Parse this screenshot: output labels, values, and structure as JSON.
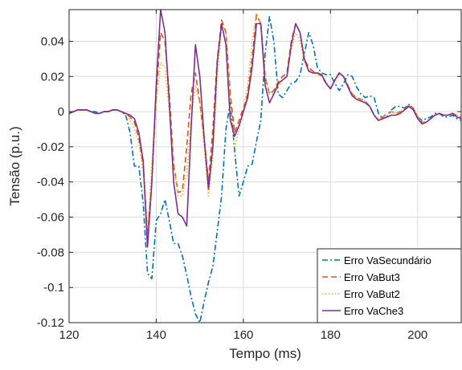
{
  "chart_data": {
    "type": "line",
    "title": "",
    "xlabel": "Tempo (ms)",
    "ylabel": "Tensão (p.u.)",
    "xlim": [
      120,
      210
    ],
    "ylim": [
      -0.12,
      0.058
    ],
    "grid": true,
    "legend_position": "bottom-right",
    "x_ticks": [
      120,
      140,
      160,
      180,
      200
    ],
    "x_tick_labels": [
      "120",
      "140",
      "160",
      "180",
      "200"
    ],
    "y_ticks": [
      0.04,
      0.02,
      0,
      -0.02,
      -0.04,
      -0.06,
      -0.08,
      -0.1,
      -0.12
    ],
    "y_tick_labels": [
      "0.04",
      "0.02",
      "0",
      "-0.02",
      "-0.04",
      "-0.06",
      "-0.08",
      "-0.1",
      "-0.12"
    ],
    "x": [
      120,
      121,
      122,
      123,
      124,
      125,
      126,
      127,
      128,
      129,
      130,
      131,
      132,
      133,
      134,
      135,
      136,
      137,
      138,
      139,
      140,
      141,
      142,
      143,
      144,
      145,
      146,
      147,
      148,
      149,
      150,
      151,
      152,
      153,
      154,
      155,
      156,
      157,
      158,
      159,
      160,
      161,
      162,
      163,
      164,
      165,
      166,
      167,
      168,
      169,
      170,
      171,
      172,
      173,
      174,
      175,
      176,
      177,
      178,
      179,
      180,
      181,
      182,
      183,
      184,
      185,
      186,
      187,
      188,
      189,
      190,
      191,
      192,
      193,
      194,
      195,
      196,
      197,
      198,
      199,
      200,
      201,
      202,
      203,
      204,
      205,
      206,
      207,
      208,
      209,
      210
    ],
    "series": [
      {
        "name": "Erro VaSecundário",
        "color": "#0072BD",
        "dash": "dashdot",
        "values": [
          -0.001,
          0,
          0.001,
          0.001,
          0.001,
          0,
          0,
          -0.001,
          0,
          0,
          0.001,
          0.001,
          0,
          -0.002,
          -0.012,
          -0.031,
          -0.031,
          -0.052,
          -0.092,
          -0.095,
          -0.062,
          -0.058,
          -0.05,
          -0.062,
          -0.075,
          -0.075,
          -0.082,
          -0.093,
          -0.105,
          -0.115,
          -0.12,
          -0.108,
          -0.097,
          -0.088,
          -0.068,
          -0.048,
          -0.01,
          0.005,
          -0.022,
          -0.048,
          -0.04,
          -0.031,
          -0.03,
          -0.017,
          -0.005,
          0.033,
          0.054,
          0.04,
          0.01,
          0.008,
          0.012,
          0.016,
          0.017,
          0.021,
          0.033,
          0.045,
          0.038,
          0.025,
          0.022,
          0.021,
          0.021,
          0.016,
          0.012,
          0.016,
          0.021,
          0.02,
          0.014,
          0.01,
          0.008,
          0.009,
          0.008,
          -0.001,
          -0.004,
          -0.003,
          0.001,
          0.003,
          0.003,
          0.002,
          0.004,
          0.002,
          -0.003,
          -0.005,
          -0.004,
          -0.003,
          -0.001,
          -0.001,
          -0.003,
          -0.003,
          -0.002,
          -0.004,
          -0.005
        ]
      },
      {
        "name": "Erro VaBut3",
        "color": "#D95319",
        "dash": "dashed",
        "values": [
          -0.001,
          0,
          0.001,
          0.001,
          0.001,
          0,
          -0.001,
          -0.001,
          0,
          0,
          0.001,
          0.001,
          0,
          -0.001,
          -0.003,
          -0.006,
          -0.015,
          -0.03,
          -0.07,
          -0.04,
          0.01,
          0.045,
          0.04,
          0.01,
          -0.03,
          -0.046,
          -0.045,
          -0.02,
          0.01,
          0.022,
          0.005,
          -0.015,
          -0.04,
          -0.01,
          0.03,
          0.052,
          0.045,
          0.01,
          -0.012,
          -0.005,
          0.002,
          0.01,
          0.03,
          0.055,
          0.05,
          0.02,
          0.01,
          0.012,
          0.017,
          0.02,
          0.022,
          0.04,
          0.05,
          0.045,
          0.03,
          0.025,
          0.023,
          0.022,
          0.02,
          0.016,
          0.013,
          0.018,
          0.022,
          0.02,
          0.015,
          0.01,
          0.008,
          0.007,
          0.006,
          0.003,
          -0.002,
          -0.005,
          -0.003,
          -0.001,
          0,
          -0.001,
          0,
          0.001,
          0.004,
          0.002,
          -0.003,
          -0.006,
          -0.006,
          -0.004,
          -0.002,
          -0.001,
          -0.002,
          -0.002,
          -0.001,
          -0.002,
          -0.003
        ]
      },
      {
        "name": "Erro VaBut2",
        "color": "#EDB120",
        "dash": "dotted",
        "values": [
          -0.001,
          0,
          0.001,
          0.001,
          0.001,
          0,
          -0.001,
          -0.001,
          0,
          0,
          0.001,
          0.001,
          0,
          -0.002,
          -0.005,
          -0.01,
          -0.018,
          -0.035,
          -0.07,
          -0.03,
          0.005,
          0.028,
          0.025,
          0,
          -0.03,
          -0.048,
          -0.048,
          -0.035,
          -0.005,
          0.015,
          0.005,
          -0.02,
          -0.048,
          -0.025,
          0.02,
          0.048,
          0.047,
          0.005,
          -0.02,
          -0.01,
          0,
          0.015,
          0.04,
          0.056,
          0.05,
          0.02,
          0.01,
          0.01,
          0.014,
          0.018,
          0.02,
          0.035,
          0.045,
          0.04,
          0.028,
          0.024,
          0.022,
          0.021,
          0.02,
          0.017,
          0.013,
          0.017,
          0.021,
          0.02,
          0.015,
          0.01,
          0.008,
          0.007,
          0.006,
          0.003,
          -0.002,
          -0.004,
          -0.003,
          -0.002,
          0,
          -0.001,
          0,
          0.001,
          0.003,
          0.002,
          -0.003,
          -0.006,
          -0.006,
          -0.004,
          -0.002,
          -0.001,
          -0.002,
          -0.002,
          -0.001,
          -0.002,
          -0.003
        ]
      },
      {
        "name": "Erro VaChe3",
        "color": "#7E2F8E",
        "dash": "solid",
        "values": [
          -0.001,
          0,
          0.001,
          0.001,
          0.001,
          0,
          -0.001,
          -0.001,
          0,
          0,
          0.001,
          0.001,
          0,
          -0.001,
          -0.002,
          -0.004,
          -0.012,
          -0.028,
          -0.077,
          -0.04,
          0.015,
          0.058,
          0.045,
          0.005,
          -0.04,
          -0.058,
          -0.06,
          -0.065,
          -0.01,
          0.038,
          0.02,
          -0.015,
          -0.044,
          -0.02,
          0.028,
          0.05,
          0.038,
          -0.005,
          -0.014,
          -0.008,
          0,
          0.008,
          0.025,
          0.05,
          0.05,
          0.015,
          0.005,
          0.01,
          0.016,
          0.018,
          0.02,
          0.038,
          0.05,
          0.045,
          0.03,
          0.023,
          0.022,
          0.022,
          0.021,
          0.016,
          0.013,
          0.018,
          0.022,
          0.02,
          0.014,
          0.009,
          0.007,
          0.006,
          0.005,
          0.003,
          -0.002,
          -0.005,
          -0.004,
          -0.003,
          -0.002,
          -0.002,
          -0.001,
          0.001,
          0.003,
          0.001,
          -0.004,
          -0.007,
          -0.006,
          -0.004,
          -0.002,
          -0.001,
          -0.002,
          -0.002,
          -0.001,
          -0.003,
          -0.004
        ]
      }
    ]
  }
}
